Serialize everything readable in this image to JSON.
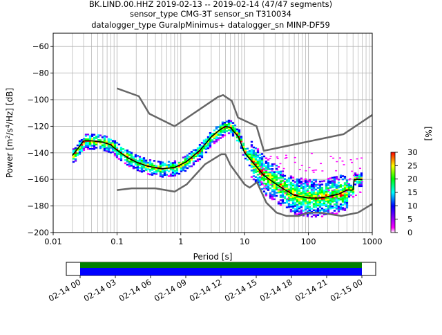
{
  "chart_data": [
    {
      "type": "heatmap",
      "title_lines": [
        "BK.LIND.00.HHZ   2019-02-13 -- 2019-02-14  (47/47 segments)",
        "sensor_type CMG-3T sensor_sn T310034",
        "datalogger_type GuralpMinimus+ datalogger_sn MINP-DF59"
      ],
      "xlabel": "Period [s]",
      "ylabel_main": "Power [m",
      "ylabel_sup1": "2",
      "ylabel_mid": "/s",
      "ylabel_sup2": "4",
      "ylabel_end": "/Hz] [dB]",
      "xscale": "log",
      "xlim": [
        0.01,
        1000
      ],
      "ylim": [
        -200,
        -50
      ],
      "x_ticks": [
        0.01,
        0.1,
        1,
        10,
        100,
        1000
      ],
      "x_tick_labels": [
        "0.01",
        "0.1",
        "1",
        "10",
        "100",
        "1000"
      ],
      "y_ticks": [
        -200,
        -180,
        -160,
        -140,
        -120,
        -100,
        -80,
        -60
      ],
      "y_tick_labels": [
        "−200",
        "−180",
        "−160",
        "−140",
        "−120",
        "−100",
        "−80",
        "−60"
      ],
      "grid": true,
      "colorbar": {
        "label": "[%]",
        "range": [
          0,
          30
        ],
        "ticks": [
          0,
          5,
          10,
          15,
          20,
          25,
          30
        ],
        "tick_labels": [
          "0",
          "5",
          "10",
          "15",
          "20",
          "25",
          "30"
        ],
        "colors": [
          "#ffffff",
          "#ff00ff",
          "#0000ff",
          "#00ffff",
          "#00ff00",
          "#ffff00",
          "#ff0000"
        ]
      },
      "noise_model_high": {
        "x": [
          0.1,
          0.22,
          0.32,
          0.8,
          3.8,
          4.6,
          6.3,
          7.9,
          15.4,
          20,
          354.8,
          1000
        ],
        "y": [
          -91.5,
          -97.4,
          -110.5,
          -120,
          -98,
          -96.5,
          -101,
          -113.5,
          -120,
          -138.5,
          -126,
          -111.5
        ]
      },
      "noise_model_low": {
        "x": [
          0.1,
          0.17,
          0.4,
          0.8,
          1.24,
          2.4,
          4.3,
          5,
          6,
          10,
          12,
          15.6,
          21.9,
          31.6,
          45,
          70,
          101,
          154,
          328,
          600,
          1000
        ],
        "y": [
          -168,
          -166.7,
          -166.7,
          -169.2,
          -163.7,
          -148.6,
          -141.1,
          -141.1,
          -149.2,
          -163.8,
          -166.2,
          -162.1,
          -177.5,
          -185,
          -187.5,
          -187.5,
          -185,
          -185,
          -187.5,
          -185,
          -178.5
        ]
      },
      "mode_curve": {
        "x": [
          0.02,
          0.025,
          0.03,
          0.04,
          0.06,
          0.08,
          0.1,
          0.15,
          0.2,
          0.3,
          0.5,
          0.8,
          1.2,
          2,
          3,
          4,
          5,
          6,
          8,
          10,
          15,
          20,
          30,
          40,
          60,
          100,
          150,
          200,
          300,
          400,
          500,
          520,
          700
        ],
        "y": [
          -142,
          -136,
          -131,
          -131,
          -132,
          -134,
          -138,
          -144,
          -147,
          -150,
          -152,
          -151,
          -147,
          -138,
          -128,
          -123,
          -120,
          -121,
          -128,
          -140,
          -150,
          -157,
          -163,
          -167,
          -172,
          -174,
          -174,
          -173,
          -171,
          -168,
          -168,
          -160,
          -160
        ]
      }
    },
    {
      "type": "bar",
      "description_kind": "data-coverage",
      "x_tick_labels": [
        "02-14 00",
        "02-14 03",
        "02-14 06",
        "02-14 09",
        "02-14 12",
        "02-14 15",
        "02-14 18",
        "02-14 21",
        "02-15 00"
      ],
      "coverage": [
        {
          "start": "2019-02-14T00:00",
          "end": "2019-02-15T00:00",
          "color": "#008000"
        },
        {
          "start": "2019-02-14T00:00",
          "end": "2019-02-15T00:00",
          "color": "#0000ff"
        }
      ]
    }
  ]
}
